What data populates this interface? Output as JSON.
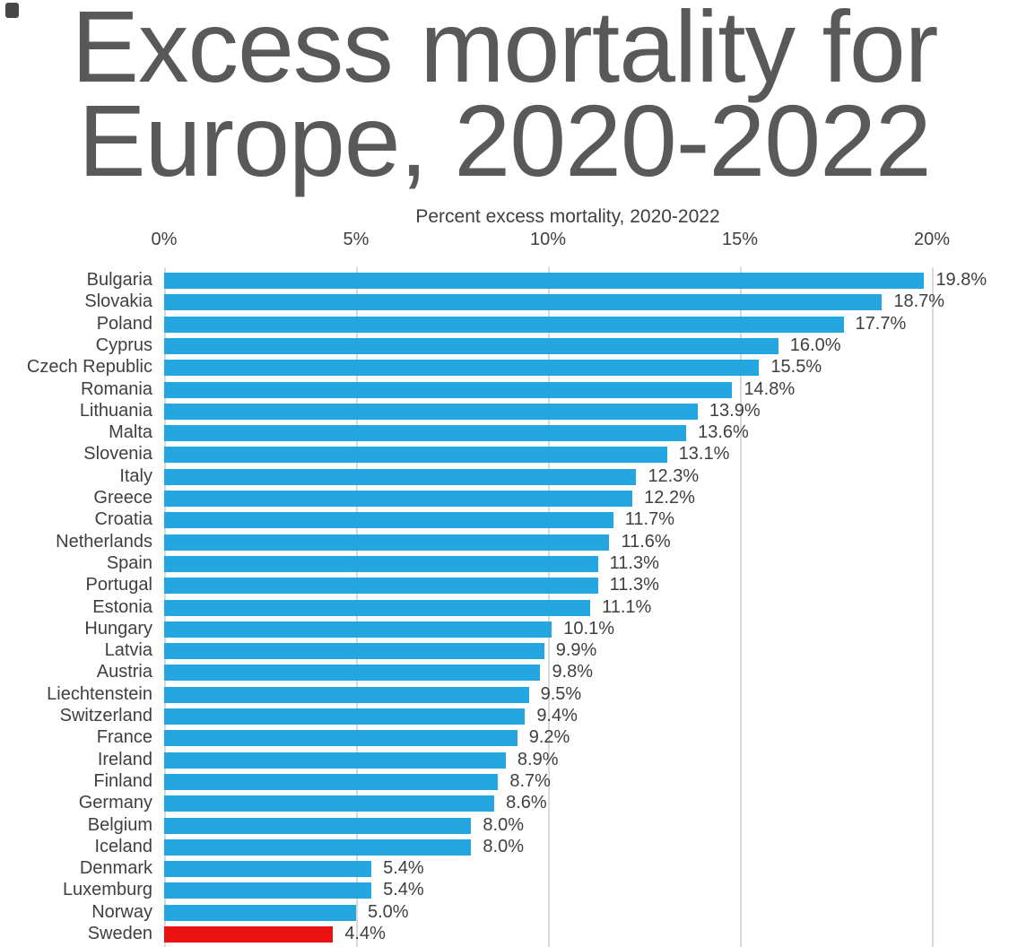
{
  "title": {
    "line1": "Excess mortality for",
    "line2": "Europe, 2020-2022"
  },
  "chart_data": {
    "type": "bar",
    "orientation": "horizontal",
    "title": "Excess mortality for Europe, 2020-2022",
    "axis_title": "Percent excess mortality, 2020-2022",
    "x_axis": {
      "ticks": [
        "0%",
        "5%",
        "10%",
        "15%",
        "20%"
      ],
      "range": [
        0,
        21.3
      ],
      "position": "top",
      "grid": true
    },
    "legend": "none",
    "colors": {
      "bar": "#24a7e0",
      "highlight": "#ea1111",
      "gridline": "#d9d9d9",
      "title_text": "#595959",
      "chart_text": "#3f3f3f"
    },
    "bars": [
      {
        "country": "Bulgaria",
        "value": 19.8,
        "label": "19.8%",
        "highlighted": false
      },
      {
        "country": "Slovakia",
        "value": 18.7,
        "label": "18.7%",
        "highlighted": false
      },
      {
        "country": "Poland",
        "value": 17.7,
        "label": "17.7%",
        "highlighted": false
      },
      {
        "country": "Cyprus",
        "value": 16.0,
        "label": "16.0%",
        "highlighted": false
      },
      {
        "country": "Czech Republic",
        "value": 15.5,
        "label": "15.5%",
        "highlighted": false
      },
      {
        "country": "Romania",
        "value": 14.8,
        "label": "14.8%",
        "highlighted": false
      },
      {
        "country": "Lithuania",
        "value": 13.9,
        "label": "13.9%",
        "highlighted": false
      },
      {
        "country": "Malta",
        "value": 13.6,
        "label": "13.6%",
        "highlighted": false
      },
      {
        "country": "Slovenia",
        "value": 13.1,
        "label": "13.1%",
        "highlighted": false
      },
      {
        "country": "Italy",
        "value": 12.3,
        "label": "12.3%",
        "highlighted": false
      },
      {
        "country": "Greece",
        "value": 12.2,
        "label": "12.2%",
        "highlighted": false
      },
      {
        "country": "Croatia",
        "value": 11.7,
        "label": "11.7%",
        "highlighted": false
      },
      {
        "country": "Netherlands",
        "value": 11.6,
        "label": "11.6%",
        "highlighted": false
      },
      {
        "country": "Spain",
        "value": 11.3,
        "label": "11.3%",
        "highlighted": false
      },
      {
        "country": "Portugal",
        "value": 11.3,
        "label": "11.3%",
        "highlighted": false
      },
      {
        "country": "Estonia",
        "value": 11.1,
        "label": "11.1%",
        "highlighted": false
      },
      {
        "country": "Hungary",
        "value": 10.1,
        "label": "10.1%",
        "highlighted": false
      },
      {
        "country": "Latvia",
        "value": 9.9,
        "label": "9.9%",
        "highlighted": false
      },
      {
        "country": "Austria",
        "value": 9.8,
        "label": "9.8%",
        "highlighted": false
      },
      {
        "country": "Liechtenstein",
        "value": 9.5,
        "label": "9.5%",
        "highlighted": false
      },
      {
        "country": "Switzerland",
        "value": 9.4,
        "label": "9.4%",
        "highlighted": false
      },
      {
        "country": "France",
        "value": 9.2,
        "label": "9.2%",
        "highlighted": false
      },
      {
        "country": "Ireland",
        "value": 8.9,
        "label": "8.9%",
        "highlighted": false
      },
      {
        "country": "Finland",
        "value": 8.7,
        "label": "8.7%",
        "highlighted": false
      },
      {
        "country": "Germany",
        "value": 8.6,
        "label": "8.6%",
        "highlighted": false
      },
      {
        "country": "Belgium",
        "value": 8.0,
        "label": "8.0%",
        "highlighted": false
      },
      {
        "country": "Iceland",
        "value": 8.0,
        "label": "8.0%",
        "highlighted": false
      },
      {
        "country": "Denmark",
        "value": 5.4,
        "label": "5.4%",
        "highlighted": false
      },
      {
        "country": "Luxemburg",
        "value": 5.4,
        "label": "5.4%",
        "highlighted": false
      },
      {
        "country": "Norway",
        "value": 5.0,
        "label": "5.0%",
        "highlighted": false
      },
      {
        "country": "Sweden",
        "value": 4.4,
        "label": "4.4%",
        "highlighted": true
      }
    ]
  }
}
